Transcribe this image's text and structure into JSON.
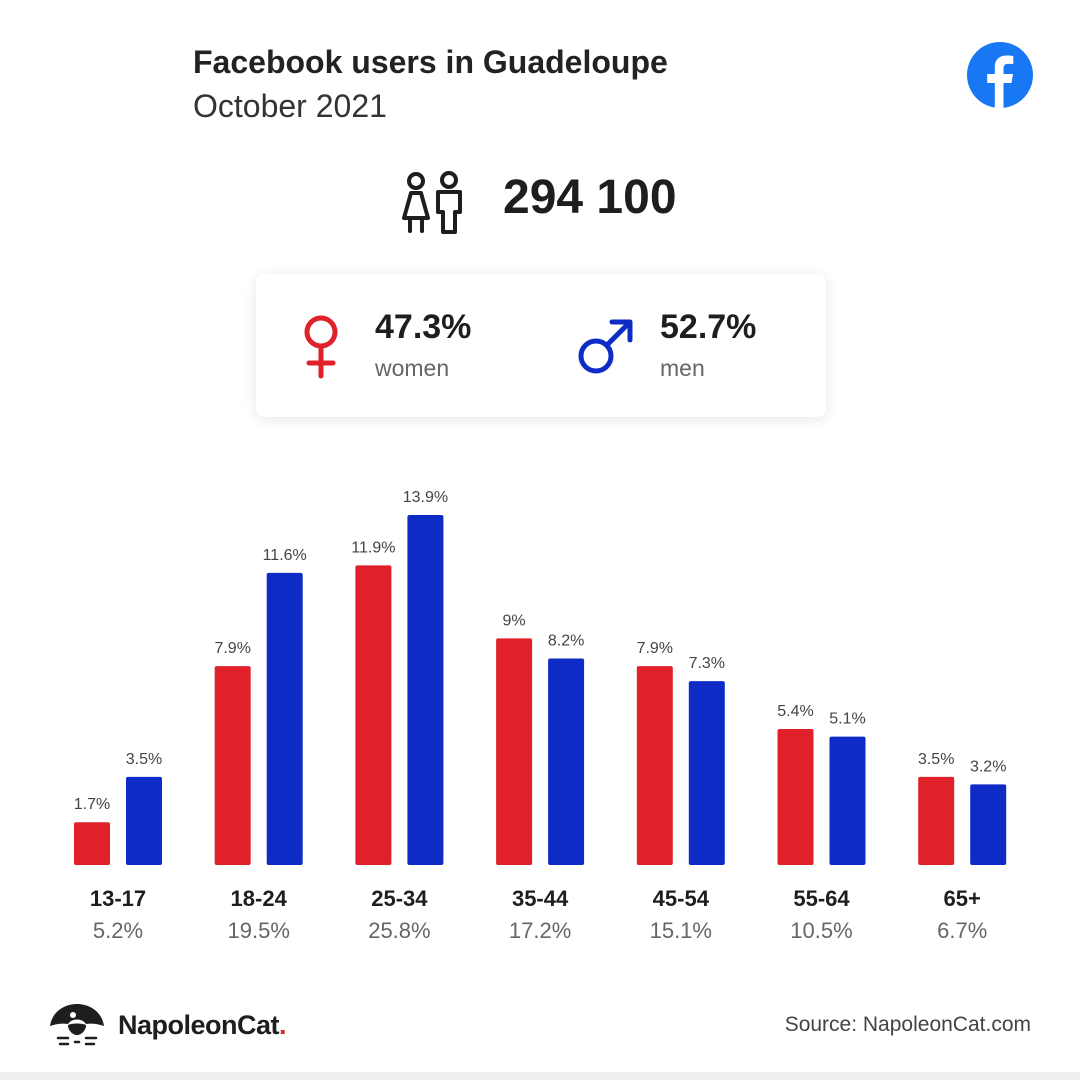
{
  "header": {
    "title": "Facebook users in Guadeloupe",
    "subtitle": "October 2021",
    "flag_colors": [
      "#002395",
      "#ffffff",
      "#ed2939"
    ],
    "brand_icon": "facebook-icon"
  },
  "summary": {
    "total_users": "294 100",
    "icon": "people-icon"
  },
  "gender": {
    "women": {
      "percent": "47.3%",
      "label": "women",
      "icon": "female-symbol-icon",
      "color": "#e0212a"
    },
    "men": {
      "percent": "52.7%",
      "label": "men",
      "icon": "male-symbol-icon",
      "color": "#0e2bc6"
    }
  },
  "chart_data": {
    "type": "bar",
    "categories": [
      "13-17",
      "18-24",
      "25-34",
      "35-44",
      "45-54",
      "55-64",
      "65+"
    ],
    "category_totals": [
      "5.2%",
      "19.5%",
      "25.8%",
      "17.2%",
      "15.1%",
      "10.5%",
      "6.7%"
    ],
    "series": [
      {
        "name": "women",
        "color": "#e0212a",
        "values": [
          1.7,
          7.9,
          11.9,
          9,
          7.9,
          5.4,
          3.5
        ],
        "labels": [
          "1.7%",
          "7.9%",
          "11.9%",
          "9%",
          "7.9%",
          "5.4%",
          "3.5%"
        ]
      },
      {
        "name": "men",
        "color": "#0e2bc6",
        "values": [
          3.5,
          11.6,
          13.9,
          8.2,
          7.3,
          5.1,
          3.2
        ],
        "labels": [
          "3.5%",
          "11.6%",
          "13.9%",
          "8.2%",
          "7.3%",
          "5.1%",
          "3.2%"
        ]
      }
    ],
    "ylim": [
      0,
      13.9
    ],
    "grid": false,
    "legend": "none"
  },
  "footer": {
    "brand_main": "NapoleonCat",
    "brand_dot": ".",
    "brand_icon": "napoleoncat-logo-icon",
    "source": "Source: NapoleonCat.com"
  }
}
